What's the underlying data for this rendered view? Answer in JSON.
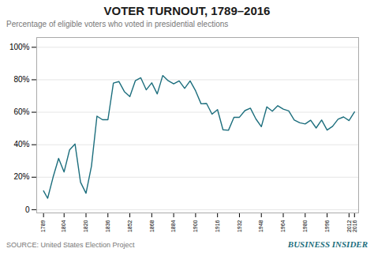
{
  "chart_data": {
    "type": "line",
    "title": "VOTER TURNOUT, 1789–2016",
    "subtitle": "Percentage of eligible voters who voted in presidential elections",
    "annotations": [
      "SOURCE: United States Election Project",
      "BUSINESS INSIDER"
    ],
    "x": [
      1789,
      1792,
      1796,
      1800,
      1804,
      1808,
      1812,
      1816,
      1820,
      1824,
      1828,
      1832,
      1836,
      1840,
      1844,
      1848,
      1852,
      1856,
      1860,
      1864,
      1868,
      1872,
      1876,
      1880,
      1884,
      1888,
      1892,
      1896,
      1900,
      1904,
      1908,
      1912,
      1916,
      1920,
      1924,
      1928,
      1932,
      1936,
      1940,
      1944,
      1948,
      1952,
      1956,
      1960,
      1964,
      1968,
      1972,
      1976,
      1980,
      1984,
      1988,
      1992,
      1996,
      2000,
      2004,
      2008,
      2012,
      2016
    ],
    "values": [
      11.6,
      7.0,
      20.1,
      31.6,
      23.2,
      36.8,
      40.4,
      16.9,
      10.1,
      26.9,
      57.6,
      55.4,
      55.4,
      78.0,
      78.9,
      72.7,
      69.6,
      79.4,
      81.2,
      73.8,
      78.1,
      71.3,
      82.6,
      79.4,
      77.5,
      79.3,
      74.7,
      79.3,
      73.2,
      65.2,
      65.4,
      58.8,
      61.6,
      49.2,
      48.9,
      56.9,
      56.9,
      61.0,
      62.5,
      55.9,
      51.1,
      63.3,
      60.6,
      64.0,
      61.9,
      60.8,
      55.2,
      53.5,
      52.8,
      55.1,
      50.3,
      55.2,
      49.0,
      51.3,
      55.7,
      57.1,
      54.9,
      60.2
    ],
    "color": "#1c6e7d",
    "xlim": [
      1784,
      2019
    ],
    "xticks": [
      1789,
      1804,
      1820,
      1836,
      1852,
      1868,
      1884,
      1900,
      1916,
      1932,
      1948,
      1964,
      1980,
      1996,
      2012,
      2016
    ],
    "ylim": [
      -2,
      106
    ],
    "yticks": [
      0,
      {
        "value": 20,
        "label": "20%"
      },
      {
        "value": 40,
        "label": "40%"
      },
      {
        "value": 60,
        "label": "60%"
      },
      {
        "value": 80,
        "label": "80%"
      },
      {
        "value": 100,
        "label": "100%"
      }
    ],
    "grid": true
  }
}
